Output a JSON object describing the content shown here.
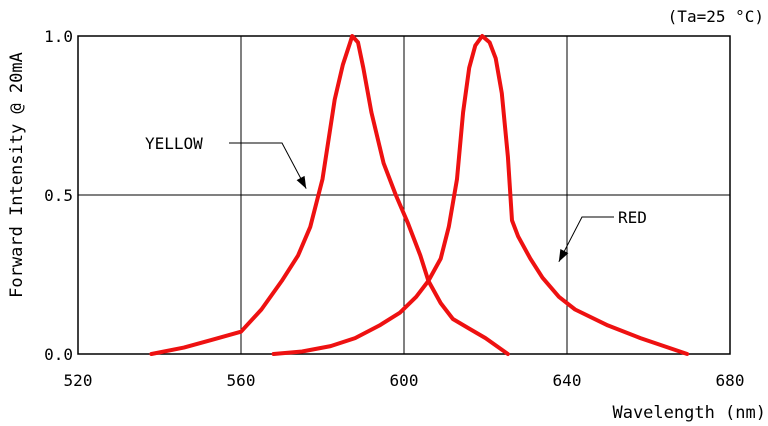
{
  "chart_data": {
    "type": "line",
    "xlabel": "Wavelength (nm)",
    "ylabel": "Forward Intensity @ 20mA",
    "condition_note": "(Ta=25 °C)",
    "xlim": [
      520,
      680
    ],
    "ylim": [
      0,
      1.0
    ],
    "x_ticks": [
      {
        "value": 520,
        "label": "520"
      },
      {
        "value": 560,
        "label": "560"
      },
      {
        "value": 600,
        "label": "600"
      },
      {
        "value": 640,
        "label": "640"
      },
      {
        "value": 680,
        "label": "680"
      }
    ],
    "y_ticks": [
      {
        "value": 0.0,
        "label": "0.0"
      },
      {
        "value": 0.5,
        "label": "0.5"
      },
      {
        "value": 1.0,
        "label": "1.0"
      }
    ],
    "grid": true,
    "series_color": "#ee1111",
    "series": [
      {
        "name": "YELLOW",
        "points": [
          [
            538,
            0.0
          ],
          [
            546,
            0.02
          ],
          [
            553,
            0.045
          ],
          [
            560,
            0.07
          ],
          [
            565,
            0.14
          ],
          [
            570,
            0.23
          ],
          [
            574,
            0.31
          ],
          [
            577,
            0.4
          ],
          [
            580,
            0.55
          ],
          [
            583,
            0.8
          ],
          [
            585,
            0.91
          ],
          [
            586.8,
            0.98
          ],
          [
            587.3,
            1.0
          ],
          [
            588.7,
            0.98
          ],
          [
            590,
            0.9
          ],
          [
            592,
            0.76
          ],
          [
            595,
            0.6
          ],
          [
            598,
            0.5
          ],
          [
            601,
            0.41
          ],
          [
            604,
            0.31
          ],
          [
            606,
            0.23
          ],
          [
            609,
            0.16
          ],
          [
            612,
            0.11
          ],
          [
            616,
            0.08
          ],
          [
            620,
            0.05
          ],
          [
            625.5,
            0.0
          ]
        ]
      },
      {
        "name": "RED",
        "points": [
          [
            568,
            0.0
          ],
          [
            575,
            0.008
          ],
          [
            582,
            0.025
          ],
          [
            588,
            0.05
          ],
          [
            594,
            0.09
          ],
          [
            599,
            0.13
          ],
          [
            603,
            0.18
          ],
          [
            606,
            0.23
          ],
          [
            609,
            0.3
          ],
          [
            611,
            0.4
          ],
          [
            613,
            0.55
          ],
          [
            614.5,
            0.76
          ],
          [
            616,
            0.9
          ],
          [
            617.5,
            0.97
          ],
          [
            619.2,
            1.0
          ],
          [
            621,
            0.98
          ],
          [
            622.5,
            0.93
          ],
          [
            624,
            0.82
          ],
          [
            625.5,
            0.62
          ],
          [
            626.5,
            0.42
          ],
          [
            628,
            0.37
          ],
          [
            631,
            0.3
          ],
          [
            634,
            0.24
          ],
          [
            638,
            0.18
          ],
          [
            642,
            0.14
          ],
          [
            650,
            0.09
          ],
          [
            658,
            0.05
          ],
          [
            669.5,
            0.0
          ]
        ]
      }
    ],
    "annotations": [
      {
        "text": "YELLOW",
        "series": "YELLOW",
        "arrow_at": [
          576,
          0.52
        ]
      },
      {
        "text": "RED",
        "series": "RED",
        "arrow_at": [
          638,
          0.29
        ]
      }
    ]
  }
}
